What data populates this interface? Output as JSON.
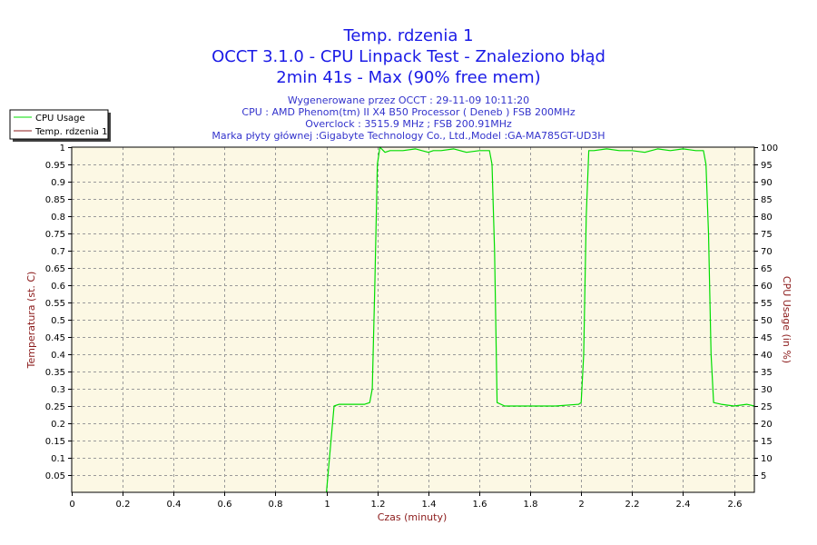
{
  "header": {
    "title_lines": [
      "Temp. rdzenia 1",
      "OCCT 3.1.0 - CPU Linpack Test - Znaleziono błąd",
      "2min 41s - Max (90% free mem)"
    ],
    "info_lines": [
      "Wygenerowane przez OCCT : 29-11-09 10:11:20",
      "CPU : AMD Phenom(tm) II X4 B50 Processor ( Deneb ) FSB 200MHz",
      "Overclock : 3515.9 MHz ; FSB 200.91MHz",
      "Marka płyty głównej :Gigabyte Technology Co., Ltd.,Model :GA-MA785GT-UD3H"
    ]
  },
  "colors": {
    "plot_background": "#fcf8e4",
    "grid": "#9a9a9a",
    "cpu_usage_line": "#00dd00",
    "temperature_line": "#8b1a1a",
    "title": "#1a1ae6",
    "info": "#3333cc",
    "axis_title": "#8b1a1a"
  },
  "legend": {
    "items": [
      {
        "label": "CPU Usage",
        "color": "#00dd00"
      },
      {
        "label": "Temp. rdzenia 1",
        "color": "#8b1a1a"
      }
    ]
  },
  "chart_data": {
    "type": "line",
    "xlabel": "Czas (minuty)",
    "ylabel_left": "Temperatura (st. C)",
    "ylabel_right": "CPU Usage (in %)",
    "xlim": [
      0,
      2.68
    ],
    "ylim_left": [
      0,
      1
    ],
    "ylim_right": [
      0,
      100
    ],
    "x_ticks": [
      "0",
      "0.2",
      "0.4",
      "0.6",
      "0.8",
      "1",
      "1.2",
      "1.4",
      "1.6",
      "1.8",
      "2",
      "2.2",
      "2.4",
      "2.6"
    ],
    "y_left_ticks": [
      "0.05",
      "0.1",
      "0.15",
      "0.2",
      "0.25",
      "0.3",
      "0.35",
      "0.4",
      "0.45",
      "0.5",
      "0.55",
      "0.6",
      "0.65",
      "0.7",
      "0.75",
      "0.8",
      "0.85",
      "0.9",
      "0.95",
      "1"
    ],
    "y_right_ticks": [
      "5",
      "10",
      "15",
      "20",
      "25",
      "30",
      "35",
      "40",
      "45",
      "50",
      "55",
      "60",
      "65",
      "70",
      "75",
      "80",
      "85",
      "90",
      "95",
      "100"
    ],
    "grid": true,
    "legend_position": "top-left",
    "series": [
      {
        "name": "CPU Usage",
        "axis": "right",
        "x": [
          1.0,
          1.03,
          1.05,
          1.1,
          1.15,
          1.17,
          1.18,
          1.19,
          1.2,
          1.21,
          1.23,
          1.25,
          1.3,
          1.35,
          1.4,
          1.42,
          1.45,
          1.5,
          1.55,
          1.6,
          1.64,
          1.65,
          1.66,
          1.67,
          1.7,
          1.8,
          1.9,
          1.99,
          2.0,
          2.01,
          2.02,
          2.03,
          2.05,
          2.1,
          2.15,
          2.2,
          2.25,
          2.3,
          2.35,
          2.4,
          2.45,
          2.48,
          2.49,
          2.5,
          2.51,
          2.52,
          2.55,
          2.6,
          2.65,
          2.68
        ],
        "y": [
          0,
          25,
          25.5,
          25.5,
          25.5,
          26,
          30,
          60,
          95,
          100,
          98.5,
          99,
          99,
          99.5,
          98.5,
          99,
          99,
          99.5,
          98.5,
          99,
          99,
          95,
          70,
          26,
          25,
          25,
          25,
          25.5,
          26,
          40,
          80,
          99,
          99,
          99.5,
          99,
          99,
          98.5,
          99.5,
          99,
          99.5,
          99,
          99,
          95,
          75,
          40,
          26,
          25.5,
          25,
          25.5,
          25
        ]
      },
      {
        "name": "Temp. rdzenia 1",
        "axis": "left",
        "x": [],
        "y": []
      }
    ]
  }
}
